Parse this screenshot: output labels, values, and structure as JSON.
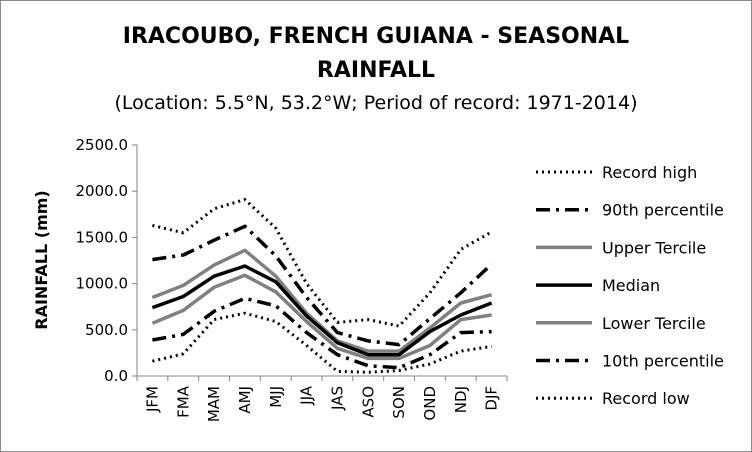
{
  "chart_data": {
    "type": "line",
    "title_line1": "IRACOUBO, FRENCH GUIANA - SEASONAL",
    "title_line2": "RAINFALL",
    "subtitle": "(Location: 5.5°N, 53.2°W; Period of record: 1971-2014)",
    "xlabel": "",
    "ylabel": "RAINFALL (mm)",
    "ylim": [
      0,
      2500
    ],
    "yticks": [
      "0.0",
      "500.0",
      "1000.0",
      "1500.0",
      "2000.0",
      "2500.0"
    ],
    "categories": [
      "JFM",
      "FMA",
      "MAM",
      "AMJ",
      "MJJ",
      "JJA",
      "JAS",
      "ASO",
      "SON",
      "OND",
      "NDJ",
      "DJF"
    ],
    "grid": false,
    "legend_position": "right",
    "series": [
      {
        "name": "Record high",
        "style": "dotted",
        "color": "#000000",
        "values": [
          1630,
          1550,
          1810,
          1910,
          1600,
          1000,
          580,
          610,
          540,
          900,
          1370,
          1560
        ]
      },
      {
        "name": "90th percentile",
        "style": "dashdot",
        "color": "#000000",
        "values": [
          1260,
          1310,
          1470,
          1620,
          1300,
          850,
          470,
          380,
          340,
          620,
          900,
          1210
        ]
      },
      {
        "name": "Upper Tercile",
        "style": "solid",
        "color": "#808080",
        "values": [
          850,
          980,
          1200,
          1360,
          1080,
          680,
          380,
          270,
          270,
          520,
          790,
          880
        ]
      },
      {
        "name": "Median",
        "style": "solid",
        "color": "#000000",
        "values": [
          740,
          860,
          1080,
          1190,
          1020,
          650,
          360,
          230,
          230,
          480,
          660,
          790
        ]
      },
      {
        "name": "Lower Tercile",
        "style": "solid",
        "color": "#808080",
        "values": [
          570,
          710,
          960,
          1090,
          910,
          590,
          300,
          190,
          190,
          330,
          610,
          660
        ]
      },
      {
        "name": "10th percentile",
        "style": "dashdot",
        "color": "#000000",
        "values": [
          390,
          450,
          700,
          840,
          760,
          470,
          230,
          110,
          90,
          230,
          470,
          480
        ]
      },
      {
        "name": "Record low",
        "style": "dotted",
        "color": "#000000",
        "values": [
          160,
          240,
          610,
          680,
          590,
          330,
          50,
          40,
          60,
          130,
          270,
          320
        ]
      }
    ]
  }
}
